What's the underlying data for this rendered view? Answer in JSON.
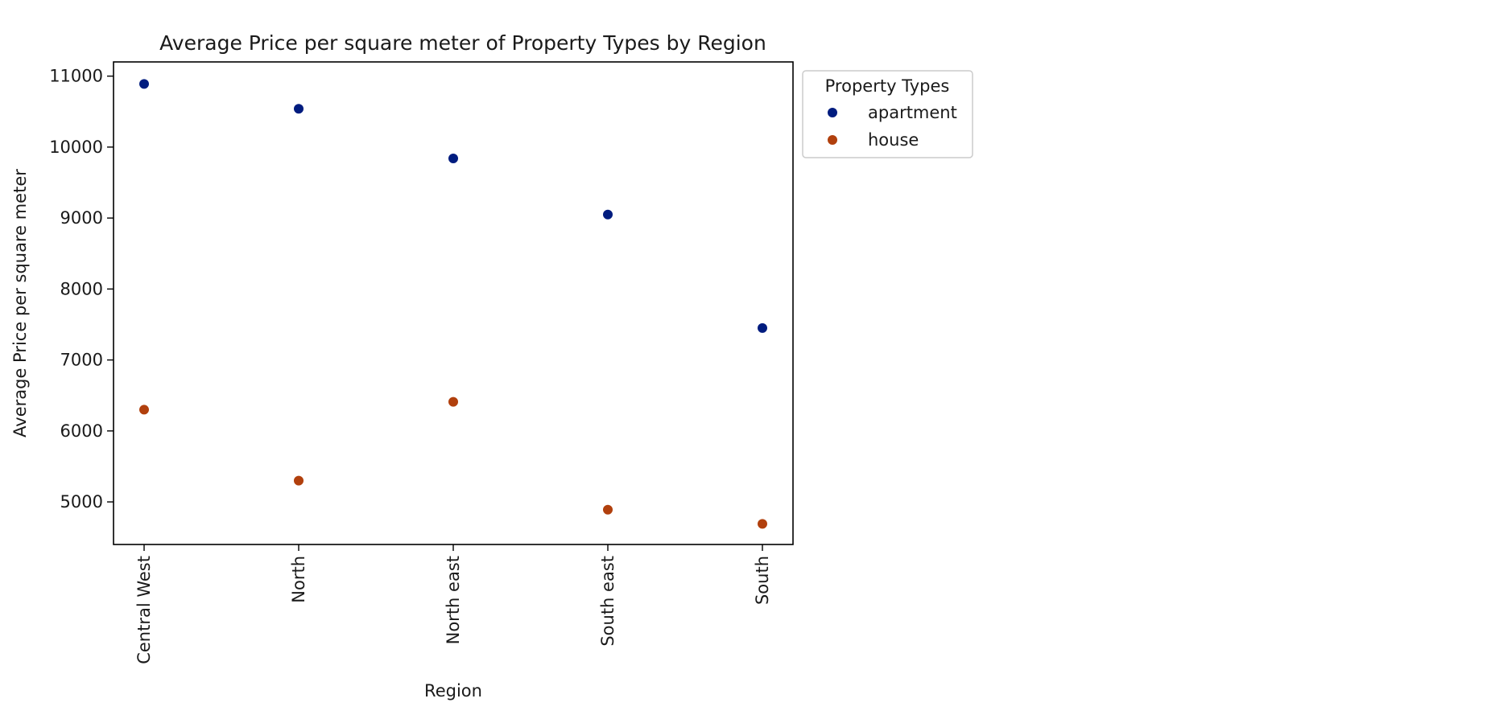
{
  "chart_data": {
    "type": "scatter",
    "title": "Average Price per square meter of Property Types by Region",
    "xlabel": "Region",
    "ylabel": "Average Price per square meter",
    "categories": [
      "Central West",
      "North",
      "North east",
      "South east",
      "South"
    ],
    "ylim": [
      4400,
      11200
    ],
    "yticks": [
      5000,
      6000,
      7000,
      8000,
      9000,
      10000,
      11000
    ],
    "grid": false,
    "legend": {
      "title": "Property Types",
      "placement": "outside-top-right"
    },
    "series": [
      {
        "name": "apartment",
        "color": "#001c7f",
        "values": [
          10890,
          10540,
          9840,
          9050,
          7450
        ]
      },
      {
        "name": "house",
        "color": "#b1400d",
        "values": [
          6300,
          5300,
          6410,
          4890,
          4690
        ]
      }
    ]
  }
}
